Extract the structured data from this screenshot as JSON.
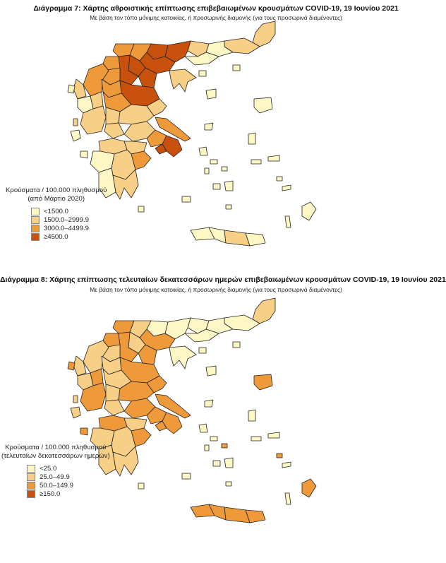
{
  "map1": {
    "title": "Διάγραμμα 7: Χάρτης αθροιστικής επίπτωσης επιβεβαιωμένων κρουσμάτων COVID-19, 19 Ιουνίου 2021",
    "subtitle": "Με βάση τον τόπο μόνιμης κατοικίας, ή προσωρινής διαμονής (για τους προσωρινά διαμένοντες)",
    "legend": {
      "title_line1": "Κρούσματα / 100.000 πληθυσμού",
      "title_line2": "(από Μάρτιο 2020)",
      "items": [
        {
          "label": "<1500.0",
          "color": "#fdf7c6"
        },
        {
          "label": "1500.0–2999.9",
          "color": "#f7cf86"
        },
        {
          "label": "3000.0–4499.9",
          "color": "#ef9a3a"
        },
        {
          "label": "≥4500.0",
          "color": "#c8510e"
        }
      ]
    }
  },
  "map2": {
    "title": "Διάγραμμα 8: Χάρτης επίπτωσης τελευταίων δεκατεσσάρων ημερών επιβεβαιωμένων κρουσμάτων COVID-19, 19 Ιουνίου 2021",
    "subtitle": "Με βάση τον τόπο μόνιμης κατοικίας, ή προσωρινής διαμονής (για τους προσωρινά διαμένοντες)",
    "legend": {
      "title_line1": "Κρούσματα / 100.000 πληθυσμού",
      "title_line2": "(τελευταίων δεκατεσσάρων ημερών)",
      "items": [
        {
          "label": "<25.0",
          "color": "#fdf7c6"
        },
        {
          "label": "25.0–49.9",
          "color": "#f7cf86"
        },
        {
          "label": "50.0–149.9",
          "color": "#ef9a3a"
        },
        {
          "label": "≥150.0",
          "color": "#c8510e"
        }
      ]
    }
  }
}
